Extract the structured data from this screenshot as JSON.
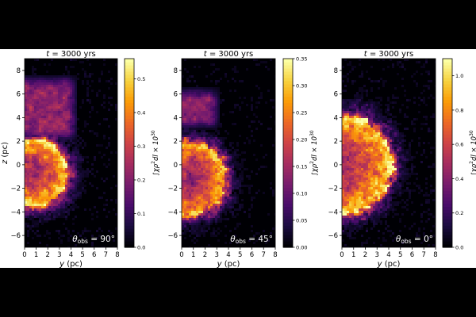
{
  "chart_data": [
    {
      "type": "heatmap",
      "title": "t = 3000 yrs",
      "title_parts": {
        "var": "t",
        "rest": " = 3000 yrs"
      },
      "xlabel": "y (pc)",
      "xlabel_parts": {
        "var": "y",
        "rest": " (pc)"
      },
      "ylabel": "z (pc)",
      "ylabel_parts": {
        "var": "z",
        "rest": " (pc)"
      },
      "xlim": [
        0,
        8
      ],
      "ylim": [
        -7,
        9
      ],
      "xticks": [
        0,
        1,
        2,
        3,
        4,
        5,
        6,
        7,
        8
      ],
      "yticks": [
        -6,
        -4,
        -2,
        0,
        2,
        4,
        6,
        8
      ],
      "annotation": "θobs = 90°",
      "annotation_parts": {
        "theta": "θ",
        "sub": "obs",
        "rest": " = 90°"
      },
      "colorbar": {
        "label": "∫χρ²dl × 10³⁰",
        "label_parts": {
          "main": "∫χρ",
          "sup1": "2",
          "mid": "dl × 10",
          "sup2": "30"
        },
        "colormap": "inferno",
        "range": [
          0,
          0.56
        ],
        "ticks": [
          "0.0",
          "0.1",
          "0.2",
          "0.3",
          "0.4",
          "0.5"
        ]
      },
      "features": {
        "shell_center": [
          0.8,
          -0.7
        ],
        "shell_radius": 3.1,
        "plume": {
          "y_range": [
            0,
            4.3
          ],
          "z_range": [
            2,
            7
          ]
        }
      }
    },
    {
      "type": "heatmap",
      "title": "t = 3000 yrs",
      "title_parts": {
        "var": "t",
        "rest": " = 3000 yrs"
      },
      "xlabel": "y (pc)",
      "xlabel_parts": {
        "var": "y",
        "rest": " (pc)"
      },
      "xlim": [
        0,
        8
      ],
      "ylim": [
        -7,
        9
      ],
      "xticks": [
        0,
        1,
        2,
        3,
        4,
        5,
        6,
        7,
        8
      ],
      "yticks": [
        -6,
        -4,
        -2,
        0,
        2,
        4,
        6,
        8
      ],
      "annotation": "θobs = 45°",
      "annotation_parts": {
        "theta": "θ",
        "sub": "obs",
        "rest": " = 45°"
      },
      "colorbar": {
        "label": "∫χρ²dl × 10³⁰",
        "label_parts": {
          "main": "∫χρ",
          "sup1": "2",
          "mid": "dl × 10",
          "sup2": "30"
        },
        "colormap": "inferno",
        "range": [
          0,
          0.35
        ],
        "ticks": [
          "0.00",
          "0.05",
          "0.10",
          "0.15",
          "0.20",
          "0.25",
          "0.30",
          "0.35"
        ]
      },
      "features": {
        "shell_center": [
          0.7,
          -1.2
        ],
        "shell_radius": 3.3,
        "plume": {
          "y_range": [
            0,
            3
          ],
          "z_range": [
            3,
            6
          ]
        }
      }
    },
    {
      "type": "heatmap",
      "title": "t = 3000 yrs",
      "title_parts": {
        "var": "t",
        "rest": " = 3000 yrs"
      },
      "xlabel": "y (pc)",
      "xlabel_parts": {
        "var": "y",
        "rest": " (pc)"
      },
      "xlim": [
        0,
        8
      ],
      "ylim": [
        -7,
        9
      ],
      "xticks": [
        0,
        1,
        2,
        3,
        4,
        5,
        6,
        7,
        8
      ],
      "yticks": [
        -6,
        -4,
        -2,
        0,
        2,
        4,
        6,
        8
      ],
      "annotation": "θobs = 0°",
      "annotation_parts": {
        "theta": "θ",
        "sub": "obs",
        "rest": " = 0°"
      },
      "colorbar": {
        "label": "∫χρ²dl × 10³⁰",
        "label_parts": {
          "main": "∫χρ",
          "sup1": "2",
          "mid": "dl × 10",
          "sup2": "30"
        },
        "colormap": "inferno",
        "range": [
          0,
          1.1
        ],
        "ticks": [
          "0.0",
          "0.2",
          "0.4",
          "0.6",
          "0.8",
          "1.0"
        ]
      },
      "features": {
        "shell_center": [
          0,
          0
        ],
        "shell_radius": 4.6,
        "plume": null
      }
    }
  ],
  "colors": {
    "inferno": [
      "#000004",
      "#1b0c41",
      "#4a0c6b",
      "#781c6d",
      "#a52c60",
      "#cf4446",
      "#ed6925",
      "#fb9b06",
      "#f7d13d",
      "#fcffa4"
    ],
    "page_bg": "#000000",
    "figure_bg": "#ffffff"
  }
}
